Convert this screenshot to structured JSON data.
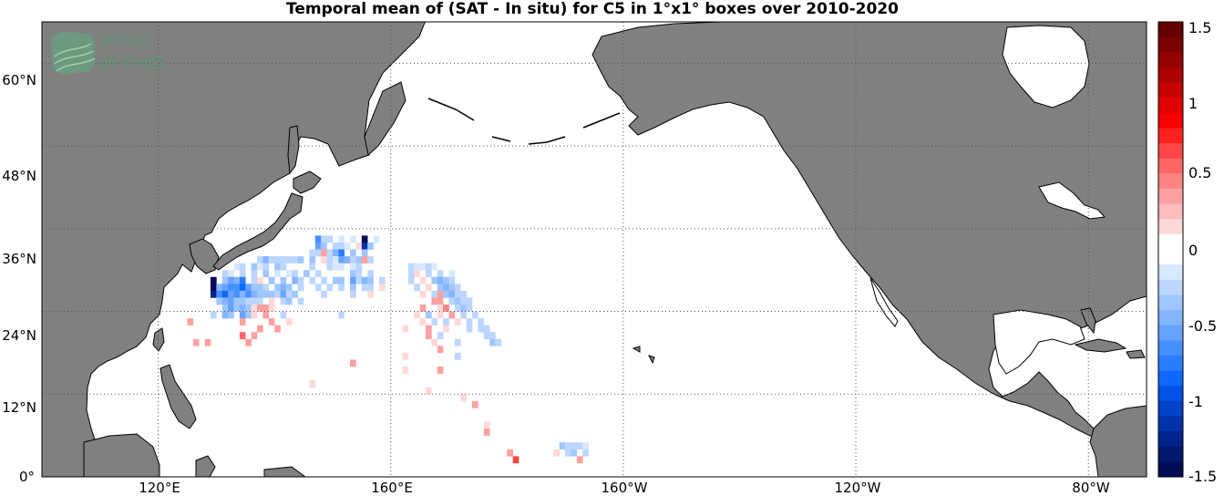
{
  "title": "Temporal mean of (SAT - In situ) for C5 in 1°x1° boxes over 2010-2020",
  "logo": {
    "line1": "smos",
    "line2": "pi-mep"
  },
  "lat_labels": [
    "60°N",
    "48°N",
    "36°N",
    "24°N",
    "12°N",
    "0°"
  ],
  "lon_labels": [
    "120°E",
    "160°E",
    "160°W",
    "120°W",
    "80°W"
  ],
  "colors": {
    "land": "#808080",
    "ocean": "#ffffff",
    "grid": "#555555"
  },
  "colorbar": {
    "min": -1.5,
    "max": 1.5,
    "tick_labels": [
      "1.5",
      "1",
      "0.5",
      "0",
      "-0.5",
      "-1",
      "-1.5"
    ],
    "colors_top_to_bottom": [
      "#650000",
      "#7a0000",
      "#940000",
      "#ad0000",
      "#c70000",
      "#e00000",
      "#f70000",
      "#ff2020",
      "#ff4545",
      "#ff6666",
      "#ff8585",
      "#ffa0a0",
      "#ffbcbc",
      "#ffd8d8",
      "#ffffff",
      "#ffffff",
      "#d8e8ff",
      "#bcd6ff",
      "#a0c6ff",
      "#85b4ff",
      "#66a3ff",
      "#4590ff",
      "#2a7cff",
      "#0f68ff",
      "#0052e6",
      "#0042c8",
      "#0033aa",
      "#00248c",
      "#001870",
      "#000c55"
    ]
  },
  "map_data": {
    "projection": "equirectangular",
    "lon_range": [
      100,
      290
    ],
    "lat_range": [
      0,
      66
    ],
    "variable": "SAT - In situ",
    "cells": [
      [
        147,
        34,
        -0.6
      ],
      [
        148,
        34,
        -0.2
      ],
      [
        149,
        34,
        -0.2
      ],
      [
        151,
        34,
        -0.15
      ],
      [
        153,
        34,
        -0.1
      ],
      [
        155,
        34,
        -1.4
      ],
      [
        157,
        34,
        -0.1
      ],
      [
        147,
        33,
        -0.5
      ],
      [
        148,
        33,
        -0.3
      ],
      [
        150,
        33,
        -0.2
      ],
      [
        151,
        33,
        -0.2
      ],
      [
        152,
        33,
        -0.1
      ],
      [
        154,
        33,
        0.2
      ],
      [
        155,
        33,
        -1.1
      ],
      [
        156,
        33,
        -0.3
      ],
      [
        146,
        32,
        -0.2
      ],
      [
        147,
        32,
        -0.2
      ],
      [
        148,
        32,
        0.3
      ],
      [
        149,
        32,
        -0.2
      ],
      [
        150,
        32,
        -0.4
      ],
      [
        151,
        32,
        -0.7
      ],
      [
        153,
        32,
        -0.3
      ],
      [
        155,
        32,
        -0.3
      ],
      [
        137,
        31,
        -0.2
      ],
      [
        138,
        31,
        -0.4
      ],
      [
        139,
        31,
        -0.25
      ],
      [
        140,
        31,
        -0.2
      ],
      [
        141,
        31,
        -0.2
      ],
      [
        142,
        31,
        -0.25
      ],
      [
        143,
        31,
        -0.2
      ],
      [
        144,
        31,
        -0.3
      ],
      [
        146,
        31,
        -0.3
      ],
      [
        148,
        31,
        0.2
      ],
      [
        149,
        31,
        -0.2
      ],
      [
        150,
        31,
        -0.15
      ],
      [
        151,
        31,
        -0.5
      ],
      [
        152,
        31,
        -0.4
      ],
      [
        153,
        31,
        -0.2
      ],
      [
        154,
        31,
        -0.35
      ],
      [
        155,
        31,
        0.3
      ],
      [
        156,
        31,
        -0.2
      ],
      [
        133,
        30,
        -0.15
      ],
      [
        134,
        30,
        -0.2
      ],
      [
        136,
        30,
        -0.3
      ],
      [
        137,
        30,
        -0.1
      ],
      [
        138,
        30,
        -0.2
      ],
      [
        140,
        30,
        -0.3
      ],
      [
        141,
        30,
        -0.2
      ],
      [
        146,
        30,
        -0.2
      ],
      [
        149,
        30,
        -0.2
      ],
      [
        150,
        30,
        -0.1
      ],
      [
        151,
        30,
        -0.1
      ],
      [
        153,
        30,
        -0.15
      ],
      [
        154,
        30,
        -0.2
      ],
      [
        163,
        30,
        -0.2
      ],
      [
        164,
        30,
        -0.1
      ],
      [
        165,
        30,
        -0.15
      ],
      [
        166,
        30,
        -0.2
      ],
      [
        167,
        30,
        -0.15
      ],
      [
        131,
        29,
        -0.2
      ],
      [
        132,
        29,
        -0.15
      ],
      [
        134,
        29,
        -0.2
      ],
      [
        136,
        29,
        -0.2
      ],
      [
        138,
        29,
        -0.3
      ],
      [
        140,
        29,
        -0.15
      ],
      [
        142,
        29,
        -0.1
      ],
      [
        143,
        29,
        -0.2
      ],
      [
        145,
        29,
        -0.3
      ],
      [
        147,
        29,
        -0.2
      ],
      [
        153,
        29,
        -0.3
      ],
      [
        154,
        29,
        -0.2
      ],
      [
        156,
        29,
        -0.2
      ],
      [
        163,
        29,
        -0.2
      ],
      [
        164,
        29,
        0.1
      ],
      [
        166,
        29,
        -0.2
      ],
      [
        168,
        29,
        -0.2
      ],
      [
        170,
        29,
        -0.15
      ],
      [
        129,
        28,
        -1.5
      ],
      [
        131,
        28,
        -0.3
      ],
      [
        132,
        28,
        -0.5
      ],
      [
        133,
        28,
        -0.4
      ],
      [
        134,
        28,
        -0.7
      ],
      [
        136,
        28,
        -0.2
      ],
      [
        137,
        28,
        0.2
      ],
      [
        139,
        28,
        -0.3
      ],
      [
        141,
        28,
        -0.3
      ],
      [
        143,
        28,
        -0.4
      ],
      [
        144,
        28,
        -0.2
      ],
      [
        146,
        28,
        -0.2
      ],
      [
        148,
        28,
        -0.2
      ],
      [
        150,
        28,
        -0.3
      ],
      [
        151,
        28,
        -0.3
      ],
      [
        153,
        28,
        -0.5
      ],
      [
        154,
        28,
        -0.2
      ],
      [
        155,
        28,
        -0.4
      ],
      [
        156,
        28,
        -0.3
      ],
      [
        158,
        28,
        -0.2
      ],
      [
        163,
        28,
        -0.2
      ],
      [
        165,
        28,
        0.2
      ],
      [
        167,
        28,
        -0.3
      ],
      [
        168,
        28,
        -0.4
      ],
      [
        169,
        28,
        -0.3
      ],
      [
        170,
        28,
        -0.2
      ],
      [
        129,
        27,
        -1.4
      ],
      [
        130,
        27,
        -0.4
      ],
      [
        131,
        27,
        -0.5
      ],
      [
        132,
        27,
        -0.6
      ],
      [
        133,
        27,
        -0.6
      ],
      [
        134,
        27,
        -0.9
      ],
      [
        135,
        27,
        -0.5
      ],
      [
        136,
        27,
        -0.3
      ],
      [
        137,
        27,
        -0.3
      ],
      [
        138,
        27,
        -0.2
      ],
      [
        140,
        27,
        -0.3
      ],
      [
        141,
        27,
        -0.4
      ],
      [
        142,
        27,
        -0.3
      ],
      [
        144,
        27,
        -0.2
      ],
      [
        147,
        27,
        -0.2
      ],
      [
        149,
        27,
        -0.2
      ],
      [
        151,
        27,
        -0.2
      ],
      [
        153,
        27,
        -0.3
      ],
      [
        155,
        27,
        -0.2
      ],
      [
        156,
        27,
        -0.2
      ],
      [
        158,
        27,
        0.2
      ],
      [
        164,
        27,
        -0.2
      ],
      [
        166,
        27,
        0.2
      ],
      [
        168,
        27,
        -0.3
      ],
      [
        169,
        27,
        -0.4
      ],
      [
        170,
        27,
        -0.3
      ],
      [
        171,
        27,
        -0.2
      ],
      [
        129,
        26,
        -1.3
      ],
      [
        130,
        26,
        -0.6
      ],
      [
        131,
        26,
        -0.8
      ],
      [
        132,
        26,
        -0.5
      ],
      [
        133,
        26,
        -0.6
      ],
      [
        134,
        26,
        -0.4
      ],
      [
        135,
        26,
        -0.6
      ],
      [
        136,
        26,
        -0.4
      ],
      [
        137,
        26,
        -0.3
      ],
      [
        138,
        26,
        -0.3
      ],
      [
        139,
        26,
        -0.3
      ],
      [
        140,
        26,
        -0.2
      ],
      [
        141,
        26,
        -0.5
      ],
      [
        142,
        26,
        -0.2
      ],
      [
        143,
        26,
        -0.3
      ],
      [
        148,
        26,
        -0.2
      ],
      [
        153,
        26,
        -0.2
      ],
      [
        156,
        26,
        0.2
      ],
      [
        165,
        26,
        0.2
      ],
      [
        167,
        26,
        -0.2
      ],
      [
        168,
        26,
        0.3
      ],
      [
        169,
        26,
        -0.3
      ],
      [
        170,
        26,
        -0.4
      ],
      [
        171,
        26,
        -0.2
      ],
      [
        172,
        26,
        -0.2
      ],
      [
        130,
        25,
        -0.3
      ],
      [
        131,
        25,
        -0.4
      ],
      [
        132,
        25,
        -0.5
      ],
      [
        133,
        25,
        -0.3
      ],
      [
        134,
        25,
        -0.3
      ],
      [
        135,
        25,
        -0.2
      ],
      [
        136,
        25,
        -0.2
      ],
      [
        137,
        25,
        -0.2
      ],
      [
        139,
        25,
        0.2
      ],
      [
        141,
        25,
        -0.2
      ],
      [
        142,
        25,
        -0.3
      ],
      [
        144,
        25,
        -0.2
      ],
      [
        167,
        25,
        0.4
      ],
      [
        168,
        25,
        0.3
      ],
      [
        170,
        25,
        -0.2
      ],
      [
        171,
        25,
        -0.3
      ],
      [
        172,
        25,
        -0.2
      ],
      [
        173,
        25,
        -0.2
      ],
      [
        131,
        24,
        -0.3
      ],
      [
        132,
        24,
        -0.5
      ],
      [
        133,
        24,
        -0.3
      ],
      [
        134,
        24,
        -0.4
      ],
      [
        135,
        24,
        -0.3
      ],
      [
        136,
        24,
        0.2
      ],
      [
        137,
        24,
        0.3
      ],
      [
        138,
        24,
        0.3
      ],
      [
        139,
        24,
        0.1
      ],
      [
        165,
        24,
        0.3
      ],
      [
        168,
        24,
        0.2
      ],
      [
        169,
        24,
        0.5
      ],
      [
        171,
        24,
        -0.2
      ],
      [
        172,
        24,
        -0.3
      ],
      [
        173,
        24,
        -0.2
      ],
      [
        129,
        23,
        -0.2
      ],
      [
        131,
        23,
        -0.4
      ],
      [
        132,
        23,
        -0.3
      ],
      [
        134,
        23,
        -0.5
      ],
      [
        135,
        23,
        -0.3
      ],
      [
        136,
        23,
        0.2
      ],
      [
        138,
        23,
        0.3
      ],
      [
        141,
        23,
        -0.2
      ],
      [
        151,
        23,
        -0.2
      ],
      [
        164,
        23,
        0.2
      ],
      [
        166,
        23,
        -0.3
      ],
      [
        168,
        23,
        0.2
      ],
      [
        170,
        23,
        0.3
      ],
      [
        172,
        23,
        -0.2
      ],
      [
        174,
        23,
        -0.2
      ],
      [
        125,
        22,
        0.3
      ],
      [
        134,
        22,
        0.3
      ],
      [
        139,
        22,
        0.4
      ],
      [
        142,
        22,
        0.2
      ],
      [
        165,
        22,
        0.2
      ],
      [
        167,
        22,
        -0.2
      ],
      [
        169,
        22,
        -0.2
      ],
      [
        171,
        22,
        0.2
      ],
      [
        173,
        22,
        -0.2
      ],
      [
        175,
        22,
        -0.2
      ],
      [
        137,
        21,
        0.3
      ],
      [
        140,
        21,
        0.3
      ],
      [
        162,
        21,
        0.2
      ],
      [
        166,
        21,
        0.3
      ],
      [
        169,
        21,
        0.2
      ],
      [
        173,
        21,
        -0.2
      ],
      [
        175,
        21,
        -0.2
      ],
      [
        176,
        21,
        -0.2
      ],
      [
        134,
        20,
        0.6
      ],
      [
        136,
        20,
        0.4
      ],
      [
        166,
        20,
        0.4
      ],
      [
        168,
        20,
        -0.2
      ],
      [
        176,
        20,
        -0.2
      ],
      [
        177,
        20,
        -0.2
      ],
      [
        126,
        19,
        0.3
      ],
      [
        128,
        19,
        0.3
      ],
      [
        135,
        19,
        0.3
      ],
      [
        167,
        19,
        0.2
      ],
      [
        171,
        19,
        -0.2
      ],
      [
        177,
        19,
        -0.3
      ],
      [
        178,
        19,
        -0.2
      ],
      [
        168,
        18,
        0.3
      ],
      [
        162,
        17,
        0.2
      ],
      [
        171,
        17,
        -0.2
      ],
      [
        153,
        16,
        0.3
      ],
      [
        162,
        15,
        0.2
      ],
      [
        168,
        15,
        0.3
      ],
      [
        146,
        13,
        0.2
      ],
      [
        166,
        12,
        0.2
      ],
      [
        172,
        11,
        0.2
      ],
      [
        174,
        10,
        0.3
      ],
      [
        176,
        7,
        0.2
      ],
      [
        176,
        6,
        0.3
      ],
      [
        189,
        4,
        -0.3
      ],
      [
        190,
        4,
        -0.2
      ],
      [
        191,
        4,
        -0.2
      ],
      [
        192,
        4,
        -0.2
      ],
      [
        193,
        4,
        -0.1
      ],
      [
        180,
        3,
        0.3
      ],
      [
        188,
        3,
        0.2
      ],
      [
        190,
        3,
        -0.2
      ],
      [
        191,
        3,
        -0.3
      ],
      [
        193,
        3,
        -0.2
      ],
      [
        181,
        2,
        0.7
      ],
      [
        192,
        2,
        0.3
      ]
    ]
  }
}
